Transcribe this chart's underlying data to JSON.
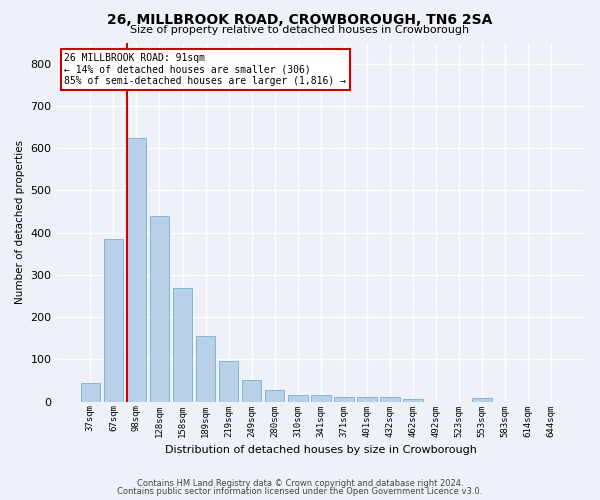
{
  "title1": "26, MILLBROOK ROAD, CROWBOROUGH, TN6 2SA",
  "title2": "Size of property relative to detached houses in Crowborough",
  "xlabel": "Distribution of detached houses by size in Crowborough",
  "ylabel": "Number of detached properties",
  "categories": [
    "37sqm",
    "67sqm",
    "98sqm",
    "128sqm",
    "158sqm",
    "189sqm",
    "219sqm",
    "249sqm",
    "280sqm",
    "310sqm",
    "341sqm",
    "371sqm",
    "401sqm",
    "432sqm",
    "462sqm",
    "492sqm",
    "523sqm",
    "553sqm",
    "583sqm",
    "614sqm",
    "644sqm"
  ],
  "values": [
    45,
    385,
    625,
    440,
    268,
    155,
    97,
    52,
    28,
    15,
    15,
    10,
    12,
    10,
    7,
    0,
    0,
    8,
    0,
    0,
    0
  ],
  "bar_color": "#b8d0e8",
  "bar_edgecolor": "#7aaed6",
  "red_line_index": 2,
  "ylim": [
    0,
    850
  ],
  "yticks": [
    0,
    100,
    200,
    300,
    400,
    500,
    600,
    700,
    800
  ],
  "annotation_line1": "26 MILLBROOK ROAD: 91sqm",
  "annotation_line2": "← 14% of detached houses are smaller (306)",
  "annotation_line3": "85% of semi-detached houses are larger (1,816) →",
  "annotation_box_color": "#ffffff",
  "annotation_box_edgecolor": "#cc0000",
  "footer1": "Contains HM Land Registry data © Crown copyright and database right 2024.",
  "footer2": "Contains public sector information licensed under the Open Government Licence v3.0.",
  "background_color": "#eef2f8",
  "grid_color": "#ffffff"
}
